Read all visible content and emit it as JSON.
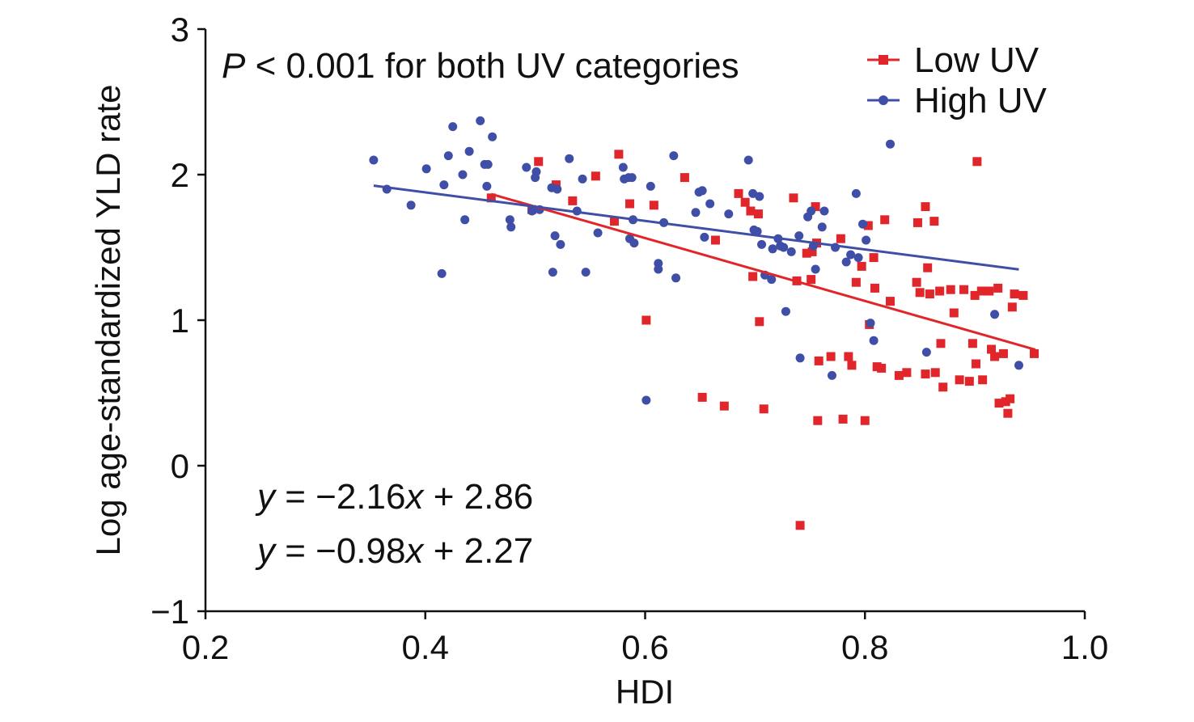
{
  "chart_data": {
    "type": "scatter",
    "xlabel": "HDI",
    "ylabel": "Log age-standardized YLD rate",
    "xlim": [
      0.2,
      1.0
    ],
    "ylim": [
      -1,
      3
    ],
    "xticks": [
      "0.2",
      "0.4",
      "0.6",
      "0.8",
      "1.0"
    ],
    "yticks": [
      "−1",
      "0",
      "1",
      "2",
      "3"
    ],
    "annotation": {
      "p_italic": "P",
      "p_rest": " < 0.001 for both UV categories",
      "eq1_y": "y",
      "eq1_mid": " = −2.16",
      "eq1_x": "x",
      "eq1_end": " + 2.86",
      "eq2_y": "y",
      "eq2_mid": " = −0.98",
      "eq2_x": "x",
      "eq2_end": " + 2.27"
    },
    "legend_position": "top-right",
    "series": [
      {
        "name": "Low UV",
        "color": "#e0262b",
        "marker": "square",
        "fit": {
          "slope": -2.16,
          "intercept": 2.86,
          "x_range": [
            0.46,
            0.955
          ]
        },
        "points": [
          [
            0.46,
            1.84
          ],
          [
            0.497,
            1.76
          ],
          [
            0.503,
            2.09
          ],
          [
            0.519,
            1.93
          ],
          [
            0.534,
            1.82
          ],
          [
            0.555,
            1.99
          ],
          [
            0.572,
            1.68
          ],
          [
            0.576,
            2.14
          ],
          [
            0.586,
            1.8
          ],
          [
            0.601,
            1.0
          ],
          [
            0.608,
            1.79
          ],
          [
            0.636,
            1.98
          ],
          [
            0.652,
            0.47
          ],
          [
            0.664,
            1.55
          ],
          [
            0.672,
            0.41
          ],
          [
            0.685,
            1.87
          ],
          [
            0.691,
            1.81
          ],
          [
            0.696,
            1.75
          ],
          [
            0.698,
            1.3
          ],
          [
            0.703,
            1.73
          ],
          [
            0.704,
            0.99
          ],
          [
            0.708,
            0.39
          ],
          [
            0.735,
            1.84
          ],
          [
            0.738,
            1.27
          ],
          [
            0.741,
            -0.41
          ],
          [
            0.747,
            1.46
          ],
          [
            0.751,
            1.28
          ],
          [
            0.752,
            1.47
          ],
          [
            0.755,
            1.78
          ],
          [
            0.756,
            1.53
          ],
          [
            0.757,
            0.31
          ],
          [
            0.758,
            0.72
          ],
          [
            0.769,
            0.75
          ],
          [
            0.778,
            1.56
          ],
          [
            0.78,
            0.32
          ],
          [
            0.785,
            0.75
          ],
          [
            0.788,
            0.69
          ],
          [
            0.792,
            1.26
          ],
          [
            0.797,
            1.37
          ],
          [
            0.8,
            0.31
          ],
          [
            0.803,
            1.65
          ],
          [
            0.804,
            0.97
          ],
          [
            0.808,
            1.43
          ],
          [
            0.809,
            1.22
          ],
          [
            0.811,
            0.68
          ],
          [
            0.815,
            0.67
          ],
          [
            0.818,
            1.69
          ],
          [
            0.823,
            1.13
          ],
          [
            0.831,
            0.62
          ],
          [
            0.838,
            0.64
          ],
          [
            0.847,
            1.26
          ],
          [
            0.848,
            1.67
          ],
          [
            0.85,
            1.19
          ],
          [
            0.855,
            1.78
          ],
          [
            0.855,
            0.63
          ],
          [
            0.857,
            1.36
          ],
          [
            0.859,
            1.18
          ],
          [
            0.863,
            1.68
          ],
          [
            0.864,
            0.64
          ],
          [
            0.868,
            1.2
          ],
          [
            0.869,
            0.84
          ],
          [
            0.871,
            0.54
          ],
          [
            0.878,
            1.21
          ],
          [
            0.881,
            1.05
          ],
          [
            0.886,
            0.59
          ],
          [
            0.89,
            1.21
          ],
          [
            0.895,
            0.58
          ],
          [
            0.898,
            0.84
          ],
          [
            0.9,
            1.17
          ],
          [
            0.901,
            0.7
          ],
          [
            0.902,
            2.09
          ],
          [
            0.906,
            1.2
          ],
          [
            0.907,
            0.59
          ],
          [
            0.913,
            1.2
          ],
          [
            0.915,
            0.8
          ],
          [
            0.918,
            0.75
          ],
          [
            0.921,
            1.22
          ],
          [
            0.922,
            0.43
          ],
          [
            0.926,
            0.77
          ],
          [
            0.928,
            0.44
          ],
          [
            0.93,
            0.36
          ],
          [
            0.932,
            0.46
          ],
          [
            0.934,
            1.09
          ],
          [
            0.936,
            1.18
          ],
          [
            0.944,
            1.17
          ],
          [
            0.954,
            0.77
          ]
        ]
      },
      {
        "name": "High UV",
        "color": "#3f4ea6",
        "marker": "circle",
        "fit": {
          "slope": -0.98,
          "intercept": 2.27,
          "x_range": [
            0.353,
            0.94
          ]
        },
        "points": [
          [
            0.353,
            2.1
          ],
          [
            0.365,
            1.9
          ],
          [
            0.387,
            1.79
          ],
          [
            0.401,
            2.04
          ],
          [
            0.415,
            1.32
          ],
          [
            0.417,
            1.93
          ],
          [
            0.421,
            2.13
          ],
          [
            0.425,
            2.33
          ],
          [
            0.434,
            2.0
          ],
          [
            0.436,
            1.69
          ],
          [
            0.44,
            2.16
          ],
          [
            0.45,
            2.37
          ],
          [
            0.454,
            2.07
          ],
          [
            0.456,
            1.92
          ],
          [
            0.457,
            2.07
          ],
          [
            0.461,
            2.26
          ],
          [
            0.477,
            1.69
          ],
          [
            0.478,
            1.64
          ],
          [
            0.492,
            2.05
          ],
          [
            0.497,
            1.75
          ],
          [
            0.5,
            1.98
          ],
          [
            0.501,
            2.02
          ],
          [
            0.504,
            1.76
          ],
          [
            0.515,
            1.91
          ],
          [
            0.516,
            1.33
          ],
          [
            0.518,
            1.58
          ],
          [
            0.52,
            1.9
          ],
          [
            0.523,
            1.52
          ],
          [
            0.531,
            2.11
          ],
          [
            0.538,
            1.75
          ],
          [
            0.543,
            1.97
          ],
          [
            0.546,
            1.33
          ],
          [
            0.557,
            1.6
          ],
          [
            0.58,
            2.05
          ],
          [
            0.581,
            1.97
          ],
          [
            0.585,
            1.98
          ],
          [
            0.586,
            1.56
          ],
          [
            0.588,
            1.98
          ],
          [
            0.589,
            1.69
          ],
          [
            0.59,
            1.53
          ],
          [
            0.601,
            0.45
          ],
          [
            0.605,
            1.92
          ],
          [
            0.612,
            1.39
          ],
          [
            0.612,
            1.35
          ],
          [
            0.617,
            1.67
          ],
          [
            0.626,
            2.13
          ],
          [
            0.628,
            1.29
          ],
          [
            0.646,
            1.74
          ],
          [
            0.649,
            1.88
          ],
          [
            0.652,
            1.89
          ],
          [
            0.654,
            1.57
          ],
          [
            0.659,
            1.8
          ],
          [
            0.676,
            1.73
          ],
          [
            0.694,
            2.1
          ],
          [
            0.698,
            1.87
          ],
          [
            0.699,
            1.62
          ],
          [
            0.702,
            1.61
          ],
          [
            0.704,
            1.85
          ],
          [
            0.706,
            1.52
          ],
          [
            0.709,
            1.31
          ],
          [
            0.715,
            1.28
          ],
          [
            0.716,
            1.49
          ],
          [
            0.721,
            1.56
          ],
          [
            0.723,
            1.51
          ],
          [
            0.726,
            1.5
          ],
          [
            0.728,
            1.06
          ],
          [
            0.733,
            1.47
          ],
          [
            0.74,
            1.58
          ],
          [
            0.741,
            0.74
          ],
          [
            0.748,
            1.71
          ],
          [
            0.751,
            1.75
          ],
          [
            0.753,
            1.51
          ],
          [
            0.755,
            1.35
          ],
          [
            0.761,
            1.64
          ],
          [
            0.763,
            1.75
          ],
          [
            0.773,
            1.5
          ],
          [
            0.77,
            0.62
          ],
          [
            0.783,
            1.4
          ],
          [
            0.787,
            1.45
          ],
          [
            0.792,
            1.87
          ],
          [
            0.794,
            1.43
          ],
          [
            0.798,
            1.66
          ],
          [
            0.801,
            1.55
          ],
          [
            0.805,
            0.98
          ],
          [
            0.808,
            0.86
          ],
          [
            0.823,
            2.21
          ],
          [
            0.856,
            0.78
          ],
          [
            0.918,
            1.04
          ],
          [
            0.94,
            0.69
          ]
        ]
      }
    ]
  }
}
